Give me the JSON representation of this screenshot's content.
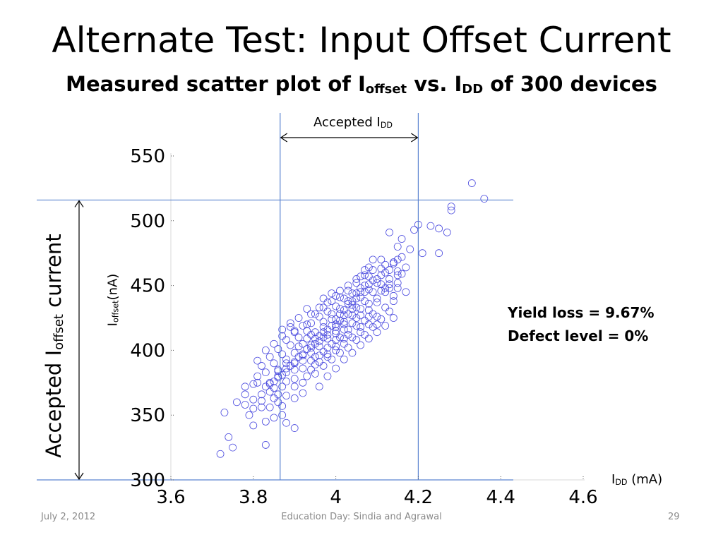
{
  "slide": {
    "title": "Alternate Test: Input Offset Current",
    "subtitle_pre": "Measured scatter plot of I",
    "subtitle_sub1": "offset",
    "subtitle_mid": " vs. I",
    "subtitle_sub2": "DD",
    "subtitle_post": " of 300 devices",
    "footer_date": "July 2, 2012",
    "footer_center": "Education Day: Sindia and Agrawal",
    "footer_page": "29"
  },
  "annotations": {
    "accepted_idd_main": "Accepted I",
    "accepted_idd_sub": "DD",
    "accepted_ioffset_pre": "Accepted I",
    "accepted_ioffset_sub": "offset",
    "accepted_ioffset_post": " current",
    "yield_loss": "Yield loss = 9.67%",
    "defect_level": "Defect level = 0%"
  },
  "axis_labels": {
    "x_main": "I",
    "x_sub": "DD",
    "x_unit": " (mA)",
    "y_main": "I",
    "y_sub": "offset",
    "y_unit": "(nA)"
  },
  "colors": {
    "points": "#4a4adf",
    "limits": "#5b84d0",
    "axis": "#d9d9d9"
  },
  "chart_data": {
    "type": "scatter",
    "xlim": [
      3.6,
      4.6
    ],
    "ylim": [
      300,
      550
    ],
    "x_ticks": [
      3.6,
      3.8,
      4.0,
      4.2,
      4.4,
      4.6
    ],
    "x_tick_labels": [
      "3.6",
      "3.8",
      "4",
      "4.2",
      "4.4",
      "4.6"
    ],
    "y_ticks": [
      300,
      350,
      400,
      450,
      500,
      550
    ],
    "y_tick_labels": [
      "300",
      "350",
      "400",
      "450",
      "500",
      "550"
    ],
    "accepted_idd_range": [
      3.865,
      4.2
    ],
    "accepted_ioffset_range": [
      300,
      516
    ],
    "marker": "open-circle",
    "grid": false,
    "legend": "none",
    "points": [
      [
        4.33,
        529
      ],
      [
        4.36,
        517
      ],
      [
        4.28,
        511
      ],
      [
        4.28,
        508
      ],
      [
        4.2,
        497
      ],
      [
        4.23,
        496
      ],
      [
        4.25,
        494
      ],
      [
        4.27,
        491
      ],
      [
        4.19,
        493
      ],
      [
        4.13,
        491
      ],
      [
        4.16,
        486
      ],
      [
        4.18,
        478
      ],
      [
        4.21,
        475
      ],
      [
        4.25,
        475
      ],
      [
        4.15,
        480
      ],
      [
        4.14,
        468
      ],
      [
        4.12,
        466
      ],
      [
        4.11,
        463
      ],
      [
        4.15,
        461
      ],
      [
        4.16,
        459
      ],
      [
        4.08,
        464
      ],
      [
        4.06,
        457
      ],
      [
        4.17,
        445
      ],
      [
        4.15,
        448
      ],
      [
        4.14,
        438
      ],
      [
        3.83,
        345
      ],
      [
        3.8,
        342
      ],
      [
        3.85,
        348
      ],
      [
        3.87,
        350
      ],
      [
        3.88,
        344
      ],
      [
        3.9,
        340
      ],
      [
        3.83,
        327
      ],
      [
        3.75,
        325
      ],
      [
        3.72,
        320
      ],
      [
        3.74,
        333
      ],
      [
        3.73,
        352
      ],
      [
        3.78,
        358
      ],
      [
        3.8,
        362
      ],
      [
        3.78,
        366
      ],
      [
        3.83,
        372
      ],
      [
        3.81,
        380
      ],
      [
        3.86,
        385
      ],
      [
        3.88,
        390
      ],
      [
        3.87,
        372
      ],
      [
        3.9,
        378
      ],
      [
        3.92,
        386
      ],
      [
        3.94,
        392
      ],
      [
        3.96,
        396
      ],
      [
        3.95,
        405
      ],
      [
        3.97,
        410
      ],
      [
        3.98,
        402
      ],
      [
        4.0,
        415
      ],
      [
        4.02,
        420
      ],
      [
        4.0,
        408
      ],
      [
        4.03,
        412
      ],
      [
        4.05,
        425
      ],
      [
        4.06,
        418
      ],
      [
        4.04,
        432
      ],
      [
        4.08,
        436
      ],
      [
        4.1,
        440
      ],
      [
        4.09,
        428
      ],
      [
        4.12,
        445
      ],
      [
        4.11,
        451
      ],
      [
        4.13,
        455
      ],
      [
        4.07,
        445
      ],
      [
        4.05,
        440
      ],
      [
        4.03,
        436
      ],
      [
        4.01,
        428
      ],
      [
        3.99,
        424
      ],
      [
        3.97,
        418
      ],
      [
        3.94,
        412
      ],
      [
        3.92,
        405
      ],
      [
        3.9,
        398
      ],
      [
        3.88,
        393
      ],
      [
        3.86,
        384
      ],
      [
        3.85,
        376
      ],
      [
        3.84,
        368
      ],
      [
        3.82,
        361
      ],
      [
        3.8,
        355
      ],
      [
        3.79,
        350
      ],
      [
        3.86,
        360
      ],
      [
        3.88,
        365
      ],
      [
        3.9,
        372
      ],
      [
        3.93,
        380
      ],
      [
        3.95,
        389
      ],
      [
        3.98,
        395
      ],
      [
        4.0,
        400
      ],
      [
        4.02,
        405
      ],
      [
        4.04,
        410
      ],
      [
        4.06,
        414
      ],
      [
        4.08,
        420
      ],
      [
        4.1,
        426
      ],
      [
        4.12,
        433
      ],
      [
        4.14,
        442
      ],
      [
        4.1,
        452
      ],
      [
        4.08,
        457
      ],
      [
        4.06,
        448
      ],
      [
        4.04,
        444
      ],
      [
        4.02,
        440
      ],
      [
        4.0,
        434
      ],
      [
        3.98,
        430
      ],
      [
        3.96,
        426
      ],
      [
        3.94,
        421
      ],
      [
        3.93,
        415
      ],
      [
        3.91,
        410
      ],
      [
        3.89,
        404
      ],
      [
        3.87,
        397
      ],
      [
        3.85,
        390
      ],
      [
        3.83,
        383
      ],
      [
        3.81,
        375
      ],
      [
        3.9,
        385
      ],
      [
        3.92,
        392
      ],
      [
        3.94,
        398
      ],
      [
        3.96,
        403
      ],
      [
        3.98,
        409
      ],
      [
        4.0,
        413
      ],
      [
        4.02,
        416
      ],
      [
        4.04,
        421
      ],
      [
        4.06,
        427
      ],
      [
        4.08,
        431
      ],
      [
        4.1,
        437
      ],
      [
        4.12,
        448
      ],
      [
        4.09,
        445
      ],
      [
        4.07,
        438
      ],
      [
        4.05,
        433
      ],
      [
        4.03,
        428
      ],
      [
        4.01,
        423
      ],
      [
        3.99,
        419
      ],
      [
        3.97,
        414
      ],
      [
        3.95,
        409
      ],
      [
        3.93,
        401
      ],
      [
        3.91,
        395
      ],
      [
        3.89,
        388
      ],
      [
        3.87,
        381
      ],
      [
        3.85,
        371
      ],
      [
        3.92,
        375
      ],
      [
        3.95,
        382
      ],
      [
        3.97,
        388
      ],
      [
        3.99,
        393
      ],
      [
        4.01,
        398
      ],
      [
        4.03,
        402
      ],
      [
        4.05,
        408
      ],
      [
        4.07,
        412
      ],
      [
        4.09,
        418
      ],
      [
        4.11,
        424
      ],
      [
        4.13,
        430
      ],
      [
        4.0,
        442
      ],
      [
        3.98,
        437
      ],
      [
        3.96,
        433
      ],
      [
        3.94,
        428
      ],
      [
        3.92,
        419
      ],
      [
        3.9,
        414
      ],
      [
        3.88,
        408
      ],
      [
        3.86,
        401
      ],
      [
        3.84,
        395
      ],
      [
        3.82,
        388
      ],
      [
        3.96,
        372
      ],
      [
        3.98,
        380
      ],
      [
        4.0,
        386
      ],
      [
        4.02,
        393
      ],
      [
        4.04,
        398
      ],
      [
        4.06,
        404
      ],
      [
        4.08,
        409
      ],
      [
        4.1,
        414
      ],
      [
        4.12,
        419
      ],
      [
        4.14,
        425
      ],
      [
        4.07,
        462
      ],
      [
        4.05,
        455
      ],
      [
        4.03,
        450
      ],
      [
        4.01,
        446
      ],
      [
        3.99,
        444
      ],
      [
        3.97,
        440
      ],
      [
        4.09,
        470
      ],
      [
        4.11,
        458
      ],
      [
        4.13,
        462
      ],
      [
        4.15,
        470
      ],
      [
        3.93,
        432
      ],
      [
        3.91,
        425
      ],
      [
        3.89,
        418
      ],
      [
        3.87,
        411
      ],
      [
        3.95,
        395
      ],
      [
        3.97,
        399
      ],
      [
        3.99,
        405
      ],
      [
        4.01,
        410
      ],
      [
        4.03,
        416
      ],
      [
        4.05,
        419
      ],
      [
        4.07,
        423
      ],
      [
        3.84,
        356
      ],
      [
        3.86,
        366
      ],
      [
        3.88,
        376
      ],
      [
        3.9,
        363
      ],
      [
        3.92,
        367
      ],
      [
        3.78,
        372
      ],
      [
        3.76,
        360
      ],
      [
        3.81,
        392
      ],
      [
        3.83,
        400
      ],
      [
        3.85,
        405
      ],
      [
        3.87,
        416
      ],
      [
        3.89,
        421
      ],
      [
        4.0,
        420
      ],
      [
        4.02,
        427
      ],
      [
        4.04,
        435
      ],
      [
        4.06,
        441
      ],
      [
        4.08,
        447
      ],
      [
        4.1,
        455
      ],
      [
        4.12,
        460
      ],
      [
        4.14,
        467
      ],
      [
        4.16,
        472
      ],
      [
        4.11,
        470
      ],
      [
        4.13,
        448
      ],
      [
        4.15,
        452
      ],
      [
        3.94,
        385
      ],
      [
        3.96,
        391
      ],
      [
        3.98,
        397
      ],
      [
        4.0,
        403
      ],
      [
        4.02,
        409
      ],
      [
        3.91,
        403
      ],
      [
        3.93,
        409
      ],
      [
        3.95,
        414
      ],
      [
        3.97,
        422
      ],
      [
        3.99,
        428
      ],
      [
        4.01,
        432
      ],
      [
        4.03,
        438
      ],
      [
        4.05,
        444
      ],
      [
        4.07,
        450
      ],
      [
        4.09,
        454
      ],
      [
        3.82,
        366
      ],
      [
        3.84,
        375
      ],
      [
        3.86,
        379
      ],
      [
        3.88,
        383
      ],
      [
        3.9,
        391
      ],
      [
        3.92,
        397
      ],
      [
        3.94,
        404
      ],
      [
        3.96,
        411
      ],
      [
        3.98,
        416
      ],
      [
        4.0,
        424
      ],
      [
        4.02,
        431
      ],
      [
        4.04,
        438
      ],
      [
        4.06,
        445
      ],
      [
        4.08,
        451
      ],
      [
        3.8,
        374
      ],
      [
        3.82,
        356
      ],
      [
        3.85,
        363
      ],
      [
        3.87,
        357
      ],
      [
        3.93,
        420
      ],
      [
        3.95,
        428
      ],
      [
        3.97,
        433
      ],
      [
        3.99,
        438
      ],
      [
        4.01,
        441
      ],
      [
        4.03,
        446
      ],
      [
        4.05,
        452
      ],
      [
        4.07,
        458
      ],
      [
        4.09,
        462
      ],
      [
        4.11,
        446
      ],
      [
        4.13,
        451
      ],
      [
        4.15,
        458
      ],
      [
        4.17,
        464
      ],
      [
        3.9,
        415
      ],
      [
        4.1,
        420
      ],
      [
        4.08,
        426
      ],
      [
        4.06,
        432
      ],
      [
        4.04,
        427
      ],
      [
        4.02,
        422
      ],
      [
        4.0,
        418
      ],
      [
        3.98,
        412
      ],
      [
        3.96,
        407
      ],
      [
        3.94,
        402
      ],
      [
        3.92,
        396
      ],
      [
        3.9,
        390
      ],
      [
        3.88,
        386
      ],
      [
        3.86,
        380
      ],
      [
        3.84,
        374
      ]
    ]
  }
}
